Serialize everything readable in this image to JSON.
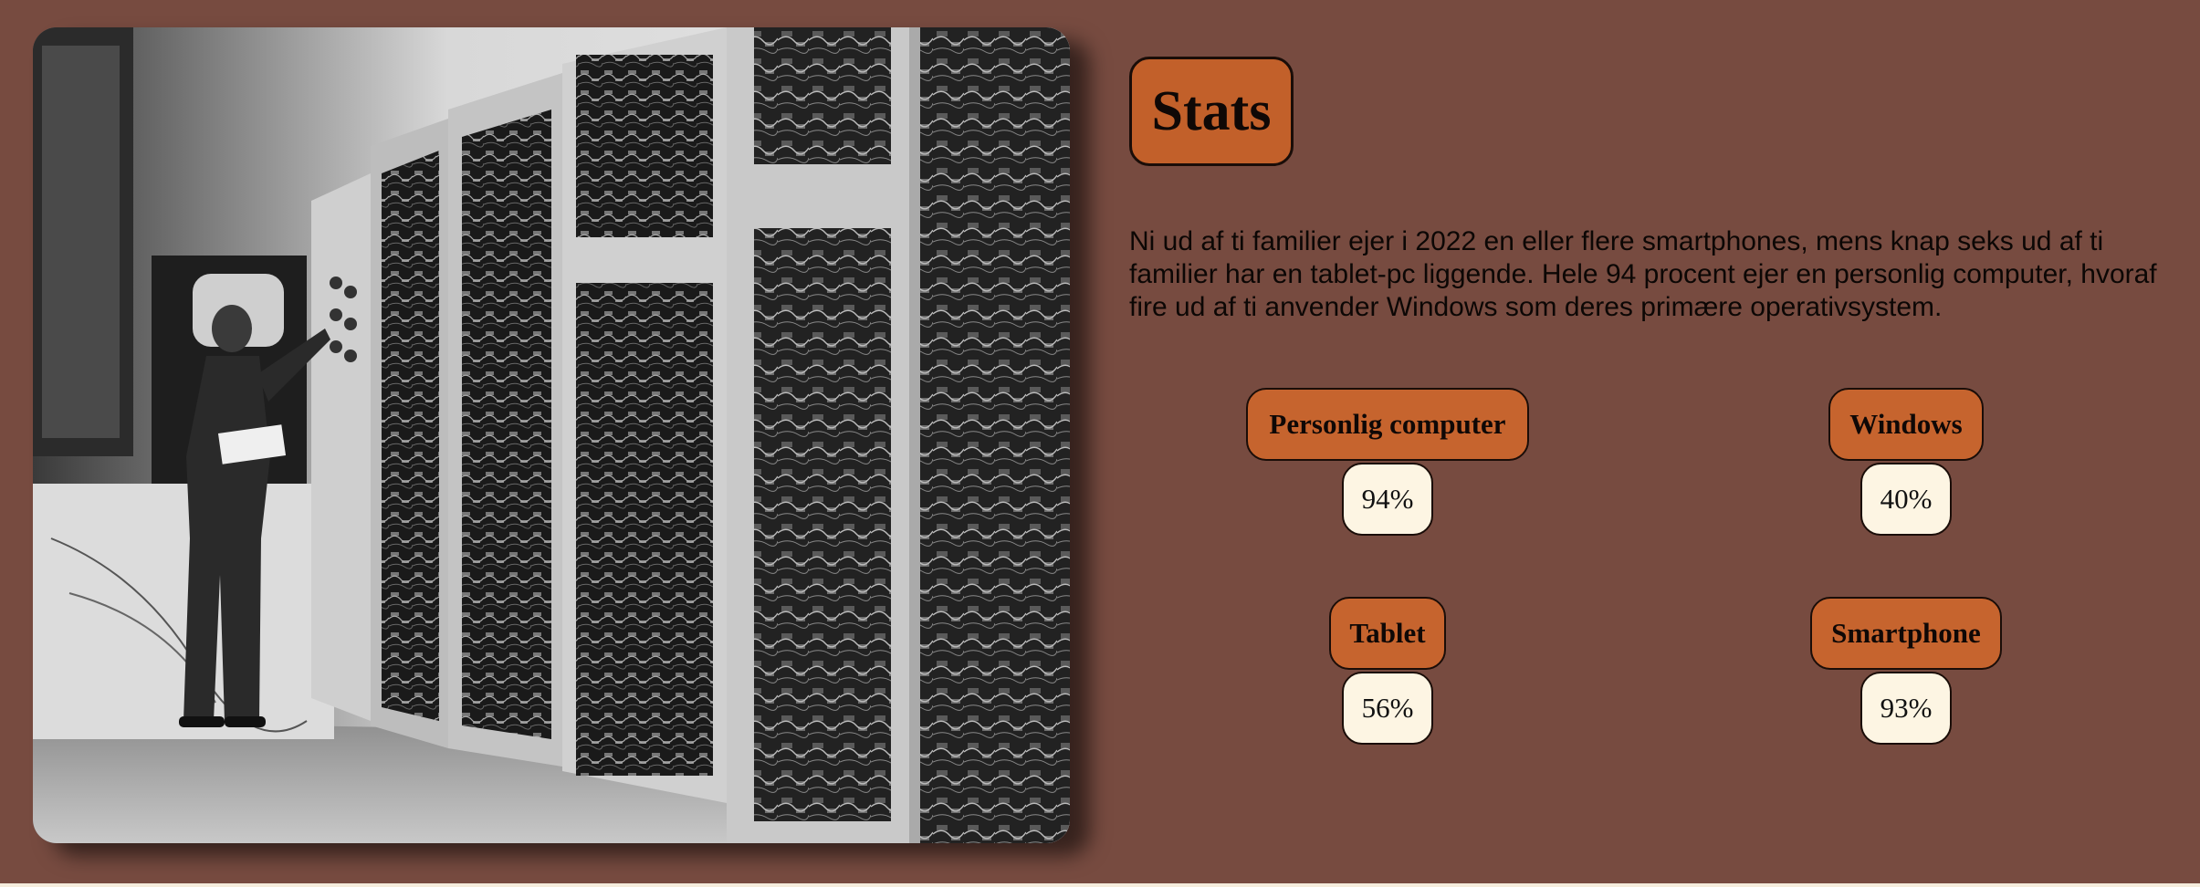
{
  "photo": {
    "subject": "vintage mainframe computer with operator"
  },
  "stats": {
    "title": "Stats",
    "text": "Ni ud af ti familier ejer i 2022 en eller flere smartphones, mens knap seks ud af ti familier har en tablet-pc liggende. Hele 94 procent ejer en personlig computer, hvoraf fire ud af ti anvender Windows som deres primære operativsystem.",
    "items": [
      {
        "label": "Personlig computer",
        "value": "94%"
      },
      {
        "label": "Windows",
        "value": "40%"
      },
      {
        "label": "Tablet",
        "value": "56%"
      },
      {
        "label": "Smartphone",
        "value": "93%"
      }
    ]
  },
  "colors": {
    "background": "#774b40",
    "accent": "#c2602a",
    "value_bg": "#fdf5e3"
  }
}
